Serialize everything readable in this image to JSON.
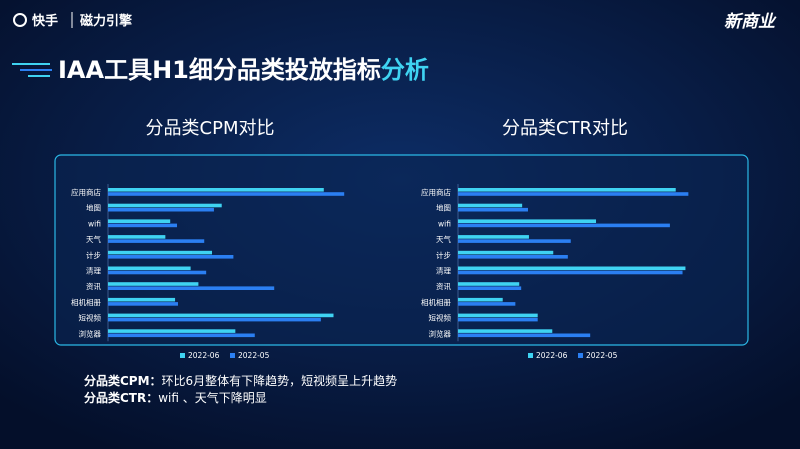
{
  "header": {
    "brand": "快手",
    "partner": "磁力引擎",
    "corner_logo": "新商业"
  },
  "title": {
    "main": "IAA工具H1细分品类投放指标",
    "highlight": "分析"
  },
  "chart_data": [
    {
      "type": "bar",
      "orientation": "horizontal",
      "title": "分品类CPM对比",
      "categories": [
        "应用商店",
        "地图",
        "wifi",
        "天气",
        "计步",
        "清理",
        "资讯",
        "相机相册",
        "短视频",
        "浏览器"
      ],
      "series": [
        {
          "name": "2022-06",
          "color": "#3fd3f2",
          "values": [
            222,
            117,
            64,
            59,
            107,
            85,
            93,
            69,
            232,
            131
          ]
        },
        {
          "name": "2022-05",
          "color": "#2b7ff2",
          "values": [
            243,
            109,
            71,
            99,
            129,
            101,
            171,
            72,
            219,
            151
          ]
        }
      ],
      "xlim": [
        0,
        250
      ]
    },
    {
      "type": "bar",
      "orientation": "horizontal",
      "title": "分品类CTR对比",
      "categories": [
        "应用商店",
        "地图",
        "wifi",
        "天气",
        "计步",
        "清理",
        "资讯",
        "相机相册",
        "短视频",
        "浏览器"
      ],
      "series": [
        {
          "name": "2022-06",
          "color": "#3fd3f2",
          "values": [
            224,
            66,
            142,
            73,
            98,
            234,
            63,
            46,
            82,
            97
          ]
        },
        {
          "name": "2022-05",
          "color": "#2b7ff2",
          "values": [
            237,
            72,
            218,
            116,
            113,
            231,
            65,
            59,
            82,
            136
          ]
        }
      ],
      "xlim": [
        0,
        250
      ]
    }
  ],
  "notes": [
    {
      "label": "分品类CPM：",
      "text": "环比6月整体有下降趋势，短视频呈上升趋势"
    },
    {
      "label": "分品类CTR：",
      "text": "wifi 、天气下降明显"
    }
  ]
}
